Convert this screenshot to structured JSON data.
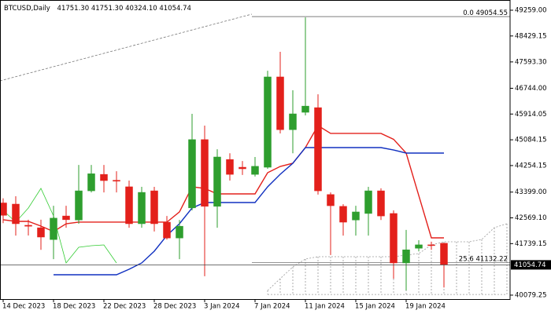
{
  "chart_data": {
    "type": "candlestick",
    "header": {
      "symbol": "BTCUSD,Daily",
      "ohlc": [
        "41751.30",
        "41751.30",
        "40324.10",
        "41054.74"
      ]
    },
    "categories": [
      "14 Dec 2023",
      null,
      null,
      null,
      "18 Dec 2023",
      null,
      null,
      null,
      "22 Dec 2023",
      null,
      null,
      null,
      "28 Dec 2023",
      null,
      null,
      null,
      "3 Jan 2024",
      null,
      null,
      null,
      "7 Jan 2024",
      null,
      null,
      null,
      "11 Jan 2024",
      null,
      null,
      null,
      "15 Jan 2024",
      null,
      null,
      null,
      "19 Jan 2024",
      null,
      null,
      null,
      null,
      null,
      null,
      null,
      null
    ],
    "open": [
      43050,
      43012,
      42330,
      42250,
      41870,
      42630,
      42500,
      43440,
      43970,
      43780,
      43570,
      42380,
      43440,
      42430,
      41920,
      42890,
      45090,
      42940,
      44450,
      44200,
      43970,
      44200,
      47110,
      45410,
      45970,
      46120,
      43320,
      42940,
      42500,
      42710,
      43440,
      42710,
      41116,
      41590,
      41700,
      41751.3,
      null,
      null,
      null,
      null,
      null
    ],
    "high": [
      43200,
      43265,
      42510,
      42510,
      42960,
      42960,
      44275,
      44275,
      44275,
      44070,
      43770,
      43570,
      43570,
      42630,
      42500,
      45920,
      45540,
      44780,
      44650,
      44400,
      44530,
      47310,
      47920,
      46680,
      49030,
      46550,
      43390,
      43010,
      42960,
      43570,
      43520,
      42810,
      42180,
      41850,
      41800,
      41751.3,
      null,
      null,
      null,
      null,
      null
    ],
    "low": [
      42400,
      41999,
      42000,
      41540,
      41240,
      42250,
      42380,
      43390,
      43390,
      43390,
      42250,
      42250,
      42130,
      41870,
      41240,
      42810,
      40690,
      42250,
      43770,
      43950,
      43900,
      44150,
      45290,
      44650,
      45870,
      43320,
      41370,
      41999,
      41999,
      41999,
      42500,
      40610,
      40230,
      41490,
      41540,
      40324.1,
      null,
      null,
      null,
      null,
      null
    ],
    "close": [
      42650,
      42380,
      42300,
      41950,
      42560,
      42510,
      43440,
      43990,
      43770,
      43750,
      42380,
      43390,
      42380,
      41920,
      42300,
      45090,
      42940,
      44530,
      43970,
      44150,
      44230,
      47110,
      45410,
      45920,
      46170,
      43440,
      42960,
      42430,
      42760,
      43440,
      42630,
      41116,
      41540,
      41700,
      41680,
      41054.74,
      null,
      null,
      null,
      null,
      null
    ],
    "up_color": "#2e9e2e",
    "down_color": "#e3201b",
    "indicators": [
      {
        "color": "#e3201b",
        "values": [
          42507,
          42456,
          42456,
          42304,
          42128,
          42380,
          42431,
          42431,
          42431,
          42431,
          42431,
          42431,
          42431,
          42431,
          42760,
          43569,
          43518,
          43341,
          43341,
          43341,
          43341,
          44024,
          44226,
          44328,
          44833,
          45541,
          45289,
          45289,
          45289,
          45289,
          45289,
          45100,
          44656,
          43290,
          41925,
          41925,
          null,
          null,
          null,
          null,
          null
        ]
      },
      {
        "color": "#1030c0",
        "values": [
          null,
          null,
          null,
          null,
          40736,
          40736,
          40736,
          40736,
          40736,
          40736,
          40913,
          41116,
          41495,
          42001,
          42380,
          42886,
          43063,
          43063,
          43063,
          43063,
          43063,
          43569,
          43973,
          44328,
          44833,
          44833,
          44833,
          44833,
          44833,
          44833,
          44833,
          44757,
          44656,
          44656,
          44656,
          44656,
          null,
          null,
          null,
          null,
          null
        ]
      },
      {
        "color": "#33cc33",
        "values": [
          42810,
          42431,
          42886,
          43518,
          42633,
          41116,
          41621,
          41672,
          41697,
          41116,
          null,
          null,
          null,
          null,
          null,
          null,
          null,
          null,
          null,
          null,
          null,
          null,
          null,
          null,
          null,
          null,
          null,
          null,
          null,
          null,
          null,
          null,
          null,
          null,
          null,
          null,
          null,
          null,
          null,
          null,
          null
        ]
      }
    ],
    "cloud": {
      "color": "#9a9a9a",
      "span_a": [
        null,
        null,
        null,
        null,
        null,
        null,
        null,
        null,
        null,
        null,
        null,
        null,
        null,
        null,
        null,
        null,
        null,
        null,
        null,
        null,
        null,
        40230,
        40610,
        40989,
        41242,
        41318,
        41318,
        41318,
        41318,
        41318,
        41318,
        41318,
        41368,
        41419,
        41697,
        41798,
        41798,
        41798,
        41874,
        42254,
        42380
      ],
      "span_b": [
        null,
        null,
        null,
        null,
        null,
        null,
        null,
        null,
        null,
        null,
        null,
        null,
        null,
        null,
        null,
        null,
        null,
        null,
        null,
        null,
        null,
        40100,
        40100,
        40100,
        40100,
        40100,
        40100,
        40100,
        40100,
        40100,
        40100,
        40100,
        40100,
        40100,
        40100,
        40100,
        40100,
        40100,
        40100,
        40100,
        40100
      ]
    },
    "fib_levels": [
      {
        "label": "0.0",
        "value": 49054.55
      },
      {
        "label": "25.6",
        "value": 41132.22
      }
    ],
    "ylim": [
      39952,
      49588
    ],
    "yticks": [
      {
        "value": 49259,
        "label": "49259.00"
      },
      {
        "value": 48429.15,
        "label": "48429.15"
      },
      {
        "value": 47593.3,
        "label": "47593.30"
      },
      {
        "value": 46744,
        "label": "46744.00"
      },
      {
        "value": 45914.05,
        "label": "45914.05"
      },
      {
        "value": 45084.15,
        "label": "45084.15"
      },
      {
        "value": 44254.15,
        "label": "44254.15"
      },
      {
        "value": 43399,
        "label": "43399.00"
      },
      {
        "value": 42569.1,
        "label": "42569.10"
      },
      {
        "value": 41739.15,
        "label": "41739.15"
      },
      {
        "value": 40079.25,
        "label": "40079.25"
      }
    ]
  }
}
